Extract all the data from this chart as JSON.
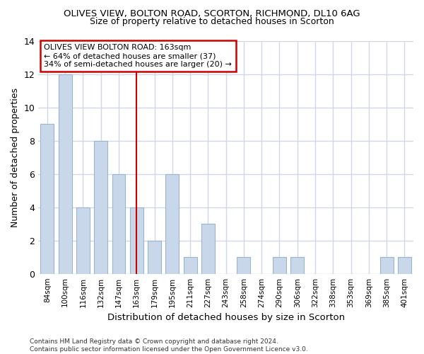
{
  "title": "OLIVES VIEW, BOLTON ROAD, SCORTON, RICHMOND, DL10 6AG",
  "subtitle": "Size of property relative to detached houses in Scorton",
  "xlabel": "Distribution of detached houses by size in Scorton",
  "ylabel": "Number of detached properties",
  "categories": [
    "84sqm",
    "100sqm",
    "116sqm",
    "132sqm",
    "147sqm",
    "163sqm",
    "179sqm",
    "195sqm",
    "211sqm",
    "227sqm",
    "243sqm",
    "258sqm",
    "274sqm",
    "290sqm",
    "306sqm",
    "322sqm",
    "338sqm",
    "353sqm",
    "369sqm",
    "385sqm",
    "401sqm"
  ],
  "values": [
    9,
    12,
    4,
    8,
    6,
    4,
    2,
    6,
    1,
    3,
    0,
    1,
    0,
    1,
    1,
    0,
    0,
    0,
    0,
    1,
    1
  ],
  "bar_color": "#c8d8ea",
  "bar_edge_color": "#9ab4cc",
  "highlight_index": 5,
  "highlight_line_color": "#cc0000",
  "highlight_box_color": "#cc0000",
  "annotation_text": "OLIVES VIEW BOLTON ROAD: 163sqm\n← 64% of detached houses are smaller (37)\n34% of semi-detached houses are larger (20) →",
  "ylim": [
    0,
    14
  ],
  "yticks": [
    0,
    2,
    4,
    6,
    8,
    10,
    12,
    14
  ],
  "footer": "Contains HM Land Registry data © Crown copyright and database right 2024.\nContains public sector information licensed under the Open Government Licence v3.0.",
  "background_color": "#ffffff",
  "plot_background_color": "#ffffff",
  "grid_color": "#d0d8e8"
}
